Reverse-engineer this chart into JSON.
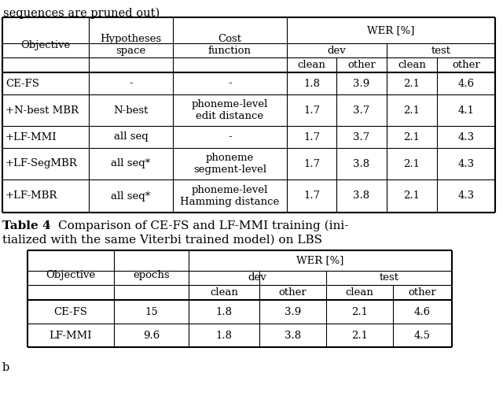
{
  "title_top": "sequences are pruned out)",
  "caption_bold": "Table 4",
  "caption_rest": ":  Comparison of CE-FS and LF-MMI training (ini-\ntialized with the same Viterbi trained model) on LBS",
  "table1": {
    "rows": [
      [
        "CE-FS",
        "-",
        "-",
        "1.8",
        "3.9",
        "2.1",
        "4.6"
      ],
      [
        "+N-best MBR",
        "N-best",
        "phoneme-level\nedit distance",
        "1.7",
        "3.7",
        "2.1",
        "4.1"
      ],
      [
        "+LF-MMI",
        "all seq",
        "-",
        "1.7",
        "3.7",
        "2.1",
        "4.3"
      ],
      [
        "+LF-SegMBR",
        "all seq*",
        "phoneme\nsegment-level",
        "1.7",
        "3.8",
        "2.1",
        "4.3"
      ],
      [
        "+LF-MBR",
        "all seq*",
        "phoneme-level\nHamming distance",
        "1.7",
        "3.8",
        "2.1",
        "4.3"
      ]
    ]
  },
  "table2": {
    "rows": [
      [
        "CE-FS",
        "15",
        "1.8",
        "3.9",
        "2.1",
        "4.6"
      ],
      [
        "LF-MMI",
        "9.6",
        "1.8",
        "3.8",
        "2.1",
        "4.5"
      ]
    ]
  },
  "bg_color": "#ffffff",
  "text_color": "#000000"
}
